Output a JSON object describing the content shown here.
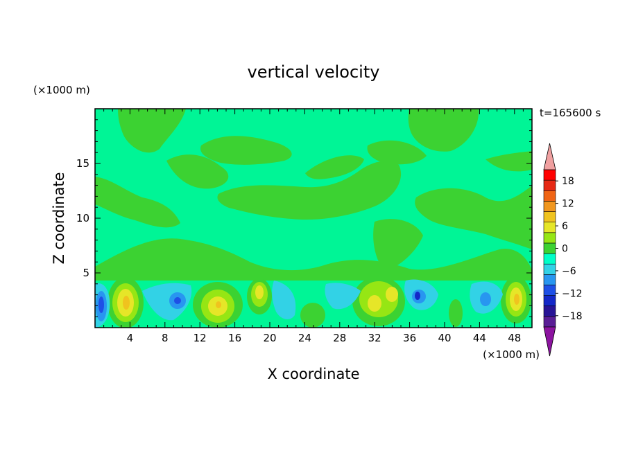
{
  "chart_data": {
    "type": "heatmap",
    "title": "vertical velocity",
    "xlabel": "X coordinate",
    "ylabel": "Z coordinate",
    "x_unit": "(×1000 m)",
    "y_unit": "(×1000 m)",
    "time_label": "t=165600 s",
    "xlim": [
      0,
      50
    ],
    "ylim": [
      0,
      20
    ],
    "x_ticks": [
      4,
      8,
      12,
      16,
      20,
      24,
      28,
      32,
      36,
      40,
      44,
      48
    ],
    "x_tick_labels": [
      "4",
      "8",
      "12",
      "16",
      "20",
      "24",
      "28",
      "32",
      "36",
      "40",
      "44",
      "48"
    ],
    "y_ticks": [
      5,
      10,
      15
    ],
    "y_tick_labels": [
      "5",
      "10",
      "15"
    ],
    "grid": false,
    "colorbar": {
      "levels": [
        -21,
        -18,
        -15,
        -12,
        -9,
        -6,
        -3,
        0,
        3,
        6,
        9,
        12,
        15,
        18,
        21
      ],
      "tick_values": [
        -18,
        -12,
        -6,
        0,
        6,
        12,
        18
      ],
      "tick_labels": [
        "−18",
        "−12",
        "−6",
        "0",
        "6",
        "12",
        "18"
      ],
      "colors": [
        "#5a1e96",
        "#281496",
        "#1428c8",
        "#1e50e6",
        "#2896f0",
        "#32d2e6",
        "#00ffc8",
        "#3cd232",
        "#96e614",
        "#e6e628",
        "#f0c31e",
        "#f0961e",
        "#f06414",
        "#e62814",
        "#ff0000"
      ],
      "under_color": "#8c14a0",
      "over_color": "#f0a0a0"
    },
    "background_color": "#00f596",
    "positive_updrafts": [
      {
        "x": 3.8,
        "z": 2.2,
        "max": 9
      },
      {
        "x": 14.0,
        "z": 1.9,
        "max": 9
      },
      {
        "x": 18.8,
        "z": 3.0,
        "max": 6
      },
      {
        "x": 31.8,
        "z": 2.0,
        "max": 6
      },
      {
        "x": 34.0,
        "z": 3.0,
        "max": 6
      },
      {
        "x": 48.0,
        "z": 2.5,
        "max": 9
      }
    ],
    "negative_downdrafts": [
      {
        "x": 0.8,
        "z": 2.0,
        "min": -12
      },
      {
        "x": 9.8,
        "z": 2.4,
        "min": -9
      },
      {
        "x": 36.6,
        "z": 2.6,
        "min": -12
      },
      {
        "x": 44.2,
        "z": 2.0,
        "min": -9
      }
    ]
  }
}
